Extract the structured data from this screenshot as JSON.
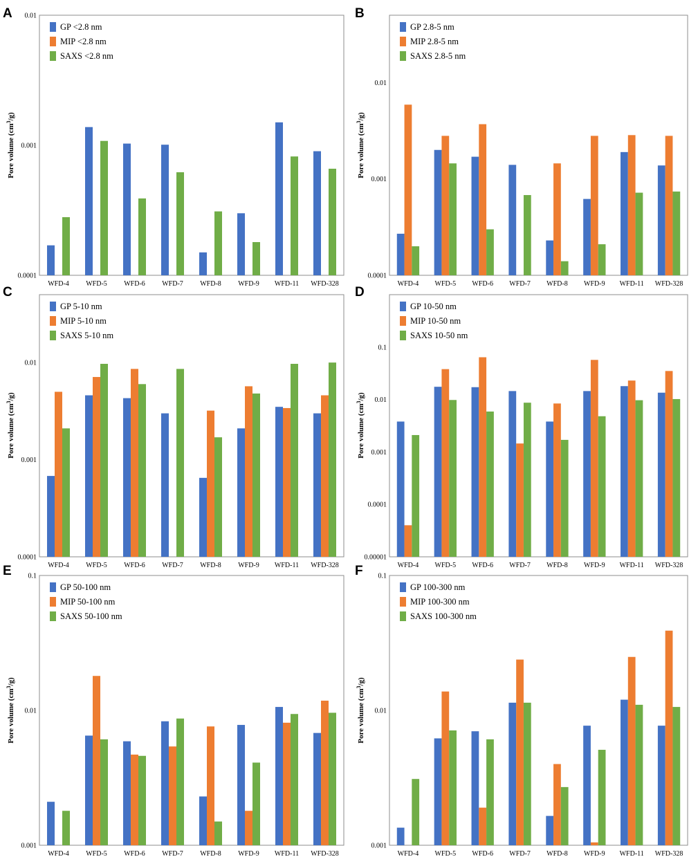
{
  "colors": {
    "GP": "#4472C4",
    "MIP": "#ED7D31",
    "SAXS": "#70AD47"
  },
  "categories": [
    "WFD-4",
    "WFD-5",
    "WFD-6",
    "WFD-7",
    "WFD-8",
    "WFD-9",
    "WFD-11",
    "WFD-328"
  ],
  "ylabel": {
    "main": "Pore volume (cm",
    "sup": "3",
    "tail": "/g)"
  },
  "chart_data": [
    {
      "panel": "A",
      "type": "bar",
      "yscale": "log",
      "ylim": [
        0.0001,
        0.01
      ],
      "yticks": [
        "0.0001",
        "0.001",
        "0.01"
      ],
      "series": [
        {
          "key": "GP",
          "name": "GP <2.8 nm",
          "values": [
            0.00017,
            0.00138,
            0.00103,
            0.00101,
            0.00015,
            0.0003,
            0.0015,
            0.0009
          ]
        },
        {
          "key": "MIP",
          "name": "MIP <2.8 nm",
          "values": [
            null,
            null,
            null,
            null,
            null,
            null,
            null,
            null
          ]
        },
        {
          "key": "SAXS",
          "name": "SAXS <2.8 nm",
          "values": [
            0.00028,
            0.00108,
            0.00039,
            0.00062,
            0.00031,
            0.00018,
            0.00082,
            0.00066
          ]
        }
      ]
    },
    {
      "panel": "B",
      "type": "bar",
      "yscale": "log",
      "ylim": [
        0.0001,
        0.05
      ],
      "yticks": [
        "0.0001",
        "0.001",
        "0.01"
      ],
      "series": [
        {
          "key": "GP",
          "name": "GP 2.8-5 nm",
          "values": [
            0.00027,
            0.002,
            0.0017,
            0.0014,
            0.00023,
            0.00062,
            0.0019,
            0.00138
          ]
        },
        {
          "key": "MIP",
          "name": "MIP 2.8-5 nm",
          "values": [
            0.0059,
            0.0028,
            0.0037,
            null,
            0.00145,
            0.0028,
            0.00285,
            0.0028
          ]
        },
        {
          "key": "SAXS",
          "name": "SAXS 2.8-5 nm",
          "values": [
            0.0002,
            0.00145,
            0.0003,
            0.00068,
            0.00014,
            0.00021,
            0.00072,
            0.00074
          ]
        }
      ]
    },
    {
      "panel": "C",
      "type": "bar",
      "yscale": "log",
      "ylim": [
        0.0001,
        0.05
      ],
      "yticks": [
        "0.0001",
        "0.001",
        "0.01"
      ],
      "series": [
        {
          "key": "GP",
          "name": "GP 5-10 nm",
          "values": [
            0.00068,
            0.0046,
            0.0043,
            0.003,
            0.00065,
            0.0021,
            0.0035,
            0.003
          ]
        },
        {
          "key": "MIP",
          "name": "MIP 5-10 nm",
          "values": [
            0.005,
            0.0071,
            0.0086,
            null,
            0.0032,
            0.0057,
            0.0034,
            0.0046
          ]
        },
        {
          "key": "SAXS",
          "name": "SAXS 5-10 nm",
          "values": [
            0.0021,
            0.0097,
            0.006,
            0.0086,
            0.0017,
            0.0048,
            0.0097,
            0.01
          ]
        }
      ]
    },
    {
      "panel": "D",
      "type": "bar",
      "yscale": "log",
      "ylim": [
        1e-05,
        1
      ],
      "yticks": [
        "0.00001",
        "0.0001",
        "0.001",
        "0.01",
        "0.1"
      ],
      "series": [
        {
          "key": "GP",
          "name": "GP 10-50 nm",
          "values": [
            0.0038,
            0.0175,
            0.0172,
            0.0145,
            0.0038,
            0.0145,
            0.018,
            0.0135
          ]
        },
        {
          "key": "MIP",
          "name": "MIP 10-50 nm",
          "values": [
            4e-05,
            0.038,
            0.064,
            0.00145,
            0.0084,
            0.057,
            0.023,
            0.035
          ]
        },
        {
          "key": "SAXS",
          "name": "SAXS 10-50 nm",
          "values": [
            0.0021,
            0.0098,
            0.0059,
            0.0087,
            0.0017,
            0.0048,
            0.0097,
            0.0102
          ]
        }
      ]
    },
    {
      "panel": "E",
      "type": "bar",
      "yscale": "log",
      "ylim": [
        0.001,
        0.1
      ],
      "yticks": [
        "0.001",
        "0.01",
        "0.1"
      ],
      "series": [
        {
          "key": "GP",
          "name": "GP 50-100 nm",
          "values": [
            0.0021,
            0.0065,
            0.0059,
            0.0083,
            0.0023,
            0.0078,
            0.0106,
            0.0068
          ]
        },
        {
          "key": "MIP",
          "name": "MIP 50-100 nm",
          "values": [
            null,
            0.018,
            0.0047,
            0.0054,
            0.0076,
            0.0018,
            0.0081,
            0.0118
          ]
        },
        {
          "key": "SAXS",
          "name": "SAXS 50-100 nm",
          "values": [
            0.0018,
            0.0061,
            0.0046,
            0.0087,
            0.0015,
            0.0041,
            0.0094,
            0.0096
          ]
        }
      ]
    },
    {
      "panel": "F",
      "type": "bar",
      "yscale": "log",
      "ylim": [
        0.001,
        0.1
      ],
      "yticks": [
        "0.001",
        "0.01",
        "0.1"
      ],
      "series": [
        {
          "key": "GP",
          "name": "GP 100-300 nm",
          "values": [
            0.00135,
            0.0062,
            0.007,
            0.0114,
            0.00165,
            0.0077,
            0.012,
            0.0077
          ]
        },
        {
          "key": "MIP",
          "name": "MIP 100-300 nm",
          "values": [
            null,
            0.0138,
            0.0019,
            0.0238,
            0.004,
            0.00105,
            0.0249,
            0.039
          ]
        },
        {
          "key": "SAXS",
          "name": "SAXS 100-300 nm",
          "values": [
            0.0031,
            0.0071,
            0.0061,
            0.0114,
            0.0027,
            0.0051,
            0.011,
            0.0106
          ]
        }
      ]
    }
  ]
}
